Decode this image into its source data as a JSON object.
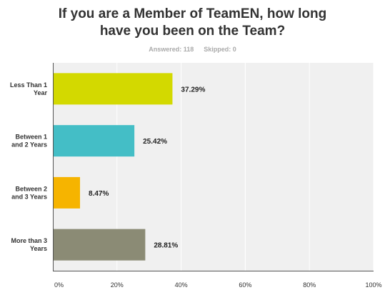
{
  "header": {
    "title_line1": "If you are a Member of TeamEN, how long",
    "title_line2": "have you been on the Team?",
    "answered": "Answered: 118",
    "skipped": "Skipped: 0"
  },
  "chart_data": {
    "type": "bar",
    "orientation": "horizontal",
    "title": "If you are a Member of TeamEN, how long have you been on the Team?",
    "categories": [
      [
        "Less Than 1",
        "Year"
      ],
      [
        "Between 1",
        "and 2 Years"
      ],
      [
        "Between 2",
        "and 3 Years"
      ],
      [
        "More than 3",
        "Years"
      ]
    ],
    "values": [
      37.29,
      25.42,
      8.47,
      28.81
    ],
    "value_labels": [
      "37.29%",
      "25.42%",
      "8.47%",
      "28.81%"
    ],
    "colors": [
      "#d3d900",
      "#44bec6",
      "#f6b400",
      "#8b8b75"
    ],
    "xlim": [
      0,
      100
    ],
    "xticks": [
      0,
      20,
      40,
      60,
      80,
      100
    ],
    "xtick_labels": [
      "0%",
      "20%",
      "40%",
      "60%",
      "80%",
      "100%"
    ],
    "grid": true,
    "background": "#f0f0f0",
    "grid_color": "#ffffff"
  }
}
